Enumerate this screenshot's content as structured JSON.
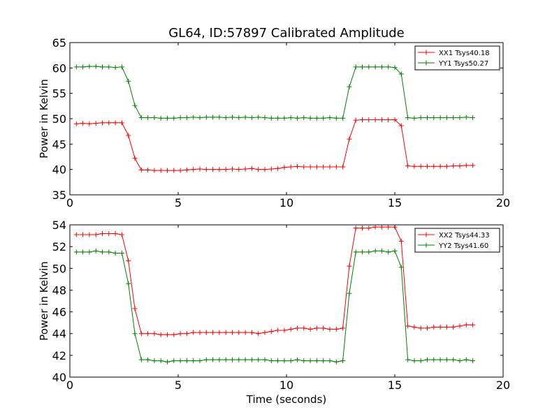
{
  "figure": {
    "title": "GL64, ID:57897 Calibrated Amplitude"
  },
  "colors": {
    "red": "#ff0000",
    "green": "#008000",
    "axes": "#000000",
    "background": "#ffffff"
  },
  "chart_data": [
    {
      "type": "line",
      "ylabel": "Power in Kelvin",
      "xlabel": "",
      "xlim": [
        0,
        20
      ],
      "ylim": [
        35,
        65
      ],
      "xticks": [
        "0",
        "5",
        "10",
        "15",
        "20"
      ],
      "yticks": [
        "35",
        "40",
        "45",
        "50",
        "55",
        "60",
        "65"
      ],
      "grid": false,
      "legend": "top-right",
      "x": [
        0.3,
        0.6,
        0.9,
        1.2,
        1.5,
        1.8,
        2.1,
        2.4,
        2.7,
        3.0,
        3.3,
        3.6,
        3.9,
        4.2,
        4.5,
        4.8,
        5.1,
        5.4,
        5.7,
        6.0,
        6.3,
        6.6,
        6.9,
        7.2,
        7.5,
        7.8,
        8.1,
        8.4,
        8.7,
        9.0,
        9.3,
        9.6,
        9.9,
        10.2,
        10.5,
        10.8,
        11.1,
        11.4,
        11.7,
        12.0,
        12.3,
        12.6,
        12.9,
        13.2,
        13.5,
        13.8,
        14.1,
        14.4,
        14.7,
        15.0,
        15.3,
        15.6,
        15.9,
        16.2,
        16.5,
        16.8,
        17.1,
        17.4,
        17.7,
        18.0,
        18.3,
        18.6
      ],
      "series": [
        {
          "name": "XX1 Tsys40.18",
          "color": "#ff0000",
          "values": [
            49.0,
            49.1,
            49.0,
            49.1,
            49.2,
            49.2,
            49.2,
            49.2,
            46.7,
            42.2,
            39.9,
            39.9,
            39.8,
            39.8,
            39.8,
            39.8,
            39.8,
            39.9,
            40.0,
            40.1,
            40.0,
            40.0,
            40.0,
            40.0,
            40.1,
            40.0,
            40.1,
            40.2,
            40.0,
            40.0,
            40.1,
            40.2,
            40.4,
            40.5,
            40.6,
            40.5,
            40.5,
            40.5,
            40.5,
            40.5,
            40.5,
            40.5,
            46.0,
            49.7,
            49.8,
            49.8,
            49.8,
            49.8,
            49.8,
            49.8,
            48.6,
            40.7,
            40.6,
            40.6,
            40.6,
            40.6,
            40.6,
            40.6,
            40.7,
            40.7,
            40.8,
            40.8
          ]
        },
        {
          "name": "YY1 Tsys50.27",
          "color": "#008000",
          "values": [
            60.2,
            60.2,
            60.3,
            60.3,
            60.2,
            60.2,
            60.1,
            60.2,
            57.4,
            52.6,
            50.2,
            50.2,
            50.2,
            50.1,
            50.1,
            50.1,
            50.2,
            50.2,
            50.3,
            50.2,
            50.3,
            50.3,
            50.3,
            50.2,
            50.3,
            50.2,
            50.3,
            50.2,
            50.3,
            50.2,
            50.1,
            50.1,
            50.1,
            50.2,
            50.1,
            50.2,
            50.1,
            50.1,
            50.1,
            50.2,
            50.1,
            50.1,
            56.3,
            60.2,
            60.2,
            60.2,
            60.2,
            60.2,
            60.2,
            60.1,
            58.8,
            50.2,
            50.1,
            50.2,
            50.2,
            50.2,
            50.2,
            50.2,
            50.2,
            50.2,
            50.3,
            50.2
          ]
        }
      ]
    },
    {
      "type": "line",
      "ylabel": "Power in Kelvin",
      "xlabel": "Time (seconds)",
      "xlim": [
        0,
        20
      ],
      "ylim": [
        40,
        54
      ],
      "xticks": [
        "0",
        "5",
        "10",
        "15",
        "20"
      ],
      "yticks": [
        "40",
        "42",
        "44",
        "46",
        "48",
        "50",
        "52",
        "54"
      ],
      "grid": false,
      "legend": "top-right",
      "x": [
        0.3,
        0.6,
        0.9,
        1.2,
        1.5,
        1.8,
        2.1,
        2.4,
        2.7,
        3.0,
        3.3,
        3.6,
        3.9,
        4.2,
        4.5,
        4.8,
        5.1,
        5.4,
        5.7,
        6.0,
        6.3,
        6.6,
        6.9,
        7.2,
        7.5,
        7.8,
        8.1,
        8.4,
        8.7,
        9.0,
        9.3,
        9.6,
        9.9,
        10.2,
        10.5,
        10.8,
        11.1,
        11.4,
        11.7,
        12.0,
        12.3,
        12.6,
        12.9,
        13.2,
        13.5,
        13.8,
        14.1,
        14.4,
        14.7,
        15.0,
        15.3,
        15.6,
        15.9,
        16.2,
        16.5,
        16.8,
        17.1,
        17.4,
        17.7,
        18.0,
        18.3,
        18.6
      ],
      "series": [
        {
          "name": "XX2 Tsys44.33",
          "color": "#ff0000",
          "values": [
            53.1,
            53.1,
            53.1,
            53.1,
            53.2,
            53.2,
            53.2,
            53.1,
            50.7,
            46.3,
            44.0,
            44.0,
            44.0,
            43.9,
            43.9,
            43.9,
            44.0,
            44.0,
            44.1,
            44.1,
            44.1,
            44.1,
            44.1,
            44.1,
            44.1,
            44.1,
            44.1,
            44.1,
            44.0,
            44.1,
            44.2,
            44.3,
            44.3,
            44.4,
            44.5,
            44.5,
            44.4,
            44.5,
            44.5,
            44.4,
            44.4,
            44.5,
            50.2,
            53.7,
            53.7,
            53.7,
            53.8,
            53.8,
            53.8,
            53.8,
            52.5,
            44.7,
            44.6,
            44.5,
            44.5,
            44.6,
            44.6,
            44.6,
            44.6,
            44.7,
            44.8,
            44.8
          ]
        },
        {
          "name": "YY2 Tsys41.60",
          "color": "#008000",
          "values": [
            51.5,
            51.5,
            51.5,
            51.6,
            51.5,
            51.5,
            51.4,
            51.4,
            48.6,
            44.0,
            41.6,
            41.6,
            41.5,
            41.5,
            41.4,
            41.5,
            41.5,
            41.5,
            41.5,
            41.5,
            41.6,
            41.6,
            41.6,
            41.6,
            41.6,
            41.6,
            41.6,
            41.6,
            41.6,
            41.6,
            41.5,
            41.5,
            41.5,
            41.5,
            41.6,
            41.5,
            41.5,
            41.5,
            41.5,
            41.5,
            41.4,
            41.5,
            47.7,
            51.5,
            51.5,
            51.5,
            51.6,
            51.6,
            51.5,
            51.6,
            50.1,
            41.6,
            41.5,
            41.5,
            41.6,
            41.6,
            41.6,
            41.6,
            41.6,
            41.5,
            41.6,
            41.5
          ]
        }
      ]
    }
  ]
}
